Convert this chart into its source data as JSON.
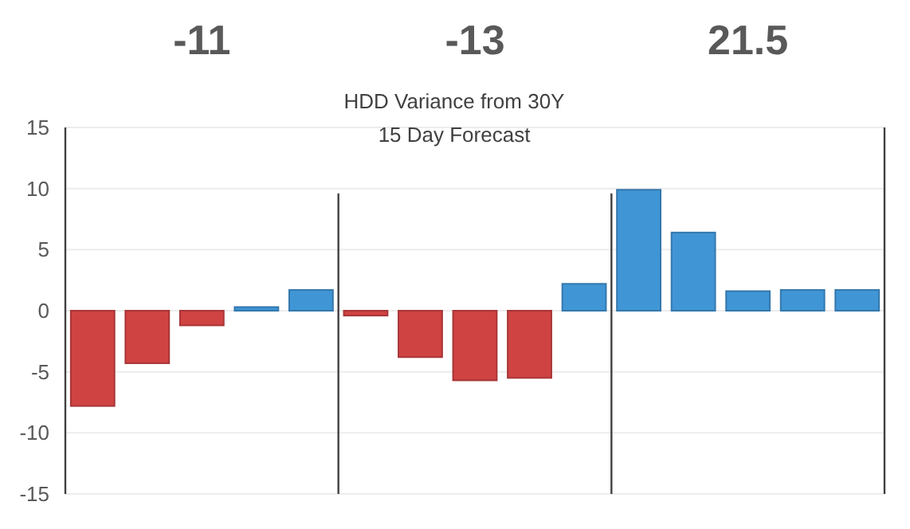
{
  "chart_data": {
    "type": "bar",
    "title": "HDD Variance from 30Y",
    "subtitle": "15 Day Forecast",
    "categories": [
      null,
      null,
      null,
      null,
      null,
      null,
      null,
      null,
      null,
      null,
      null,
      null,
      null,
      null,
      null
    ],
    "values": [
      -7.8,
      -4.3,
      -1.2,
      0.3,
      1.7,
      -0.4,
      -3.8,
      -5.7,
      -5.5,
      2.2,
      9.9,
      6.4,
      1.6,
      1.7,
      1.7
    ],
    "colors": [
      "#d04343",
      "#d04343",
      "#d04343",
      "#4095d5",
      "#4095d5",
      "#d04343",
      "#d04343",
      "#d04343",
      "#d04343",
      "#4095d5",
      "#4095d5",
      "#4095d5",
      "#4095d5",
      "#4095d5",
      "#4095d5"
    ],
    "ylim": [
      -15,
      15
    ],
    "yticks": [
      -15,
      -10,
      -5,
      0,
      5,
      10,
      15
    ],
    "grid": "y",
    "tick_labels": "y",
    "annotations": [
      "-11",
      "-13",
      "21.5"
    ]
  }
}
